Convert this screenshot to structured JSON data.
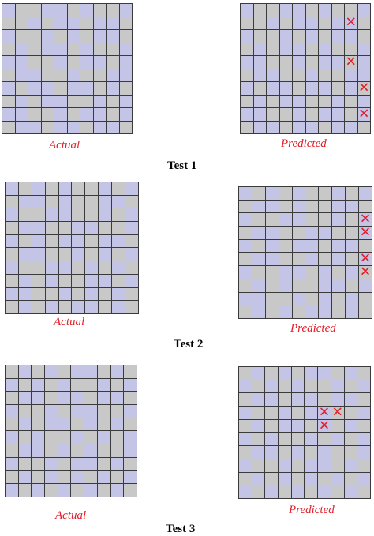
{
  "colors": {
    "purple": "#c4c4e6",
    "gray": "#c8c8c8",
    "red": "#e0202a"
  },
  "grid_size": 10,
  "error_mark_icon": "cross-mark-icon",
  "error_mark_glyph": "✕",
  "tests": [
    {
      "title": "Test 1",
      "actual_label": "Actual",
      "predicted_label": "Predicted",
      "actual_rows": [
        "PGGPPGPGGP",
        "GGPGPPGPPG",
        "PGGPGPGPPG",
        "GPGPPGPGGP",
        "PPGGPGPPGP",
        "GPPGGPGGPP",
        "PGPPGPPGPG",
        "GPGPPGGPGP",
        "PPGGPGPPGP",
        "GPPGPPGPPG"
      ],
      "predicted_rows": [
        "PGGPPGPGGP",
        "GGPGPPGPPG",
        "PGGPGPGPPG",
        "GPGPPGPGGP",
        "PPGGPGPPGP",
        "GPPGGPGGPP",
        "PGPPGPPGPG",
        "GPGPPGGPGP",
        "PPGGPGPPGP",
        "GPPGPPGPPG"
      ],
      "errors": [
        [
          1,
          8
        ],
        [
          4,
          8
        ],
        [
          6,
          9
        ],
        [
          8,
          9
        ]
      ]
    },
    {
      "title": "Test 2",
      "actual_label": "Actual",
      "predicted_label": "Predicted",
      "actual_rows": [
        "PGPGPGGPGP",
        "GPPGPGGPPG",
        "PGGPPGGPGP",
        "GPPGGPPGGP",
        "PGPGPPGPPG",
        "GPPGGPGPGP",
        "PGGPPGPGPG",
        "GPGPGGPPGP",
        "PPGGPGPGPG",
        "GPGPGPPGPG"
      ],
      "predicted_rows": [
        "PGPGPGGPGP",
        "GPPGPGGPPG",
        "PGGPPGGPGP",
        "GPPGGPPGGP",
        "PGPGPPGPPG",
        "GPPGGPGPGP",
        "PGGPPGPGPG",
        "GPGPGGPPGP",
        "PPGGPGPGPG",
        "GPGPGPPGPG"
      ],
      "errors": [
        [
          2,
          9
        ],
        [
          3,
          9
        ],
        [
          5,
          9
        ],
        [
          6,
          9
        ]
      ]
    },
    {
      "title": "Test 3",
      "actual_label": "Actual",
      "predicted_label": "Predicted",
      "actual_rows": [
        "GPGPGPPGPG",
        "PGPGPGGPGP",
        "GPPGPPGPPG",
        "PGGPGPPGGP",
        "GPGPPGPGPG",
        "PGPGGPGPGP",
        "GPPGPGPGGP",
        "PGGPGPPGPG",
        "GPGPGPGPGP",
        "PGPGPGPGPG"
      ],
      "predicted_rows": [
        "GPGPGPPGPG",
        "PGPGPGGPGP",
        "GPPGPPGPPG",
        "PGGPGPPGGP",
        "GPGPPGPGPG",
        "PGPGGPGPGP",
        "GPPGPGPGGP",
        "PGGPGPPGPG",
        "GPGPGPGPGP",
        "PGPGPGPGPG"
      ],
      "errors": [
        [
          3,
          6
        ],
        [
          3,
          7
        ],
        [
          4,
          6
        ]
      ]
    }
  ]
}
